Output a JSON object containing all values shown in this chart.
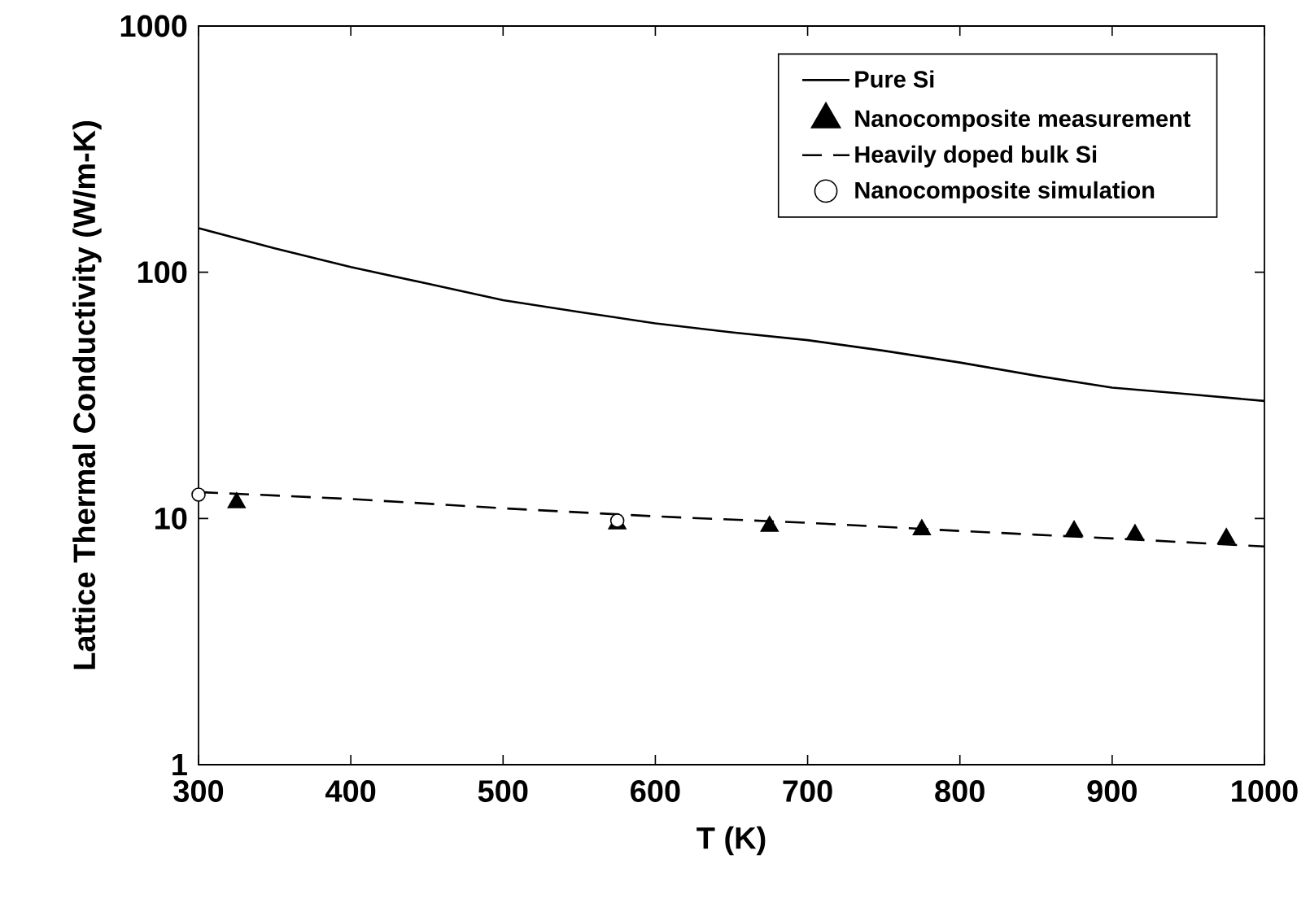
{
  "chart_data": {
    "type": "line",
    "xlabel": "T (K)",
    "ylabel": "Lattice Thermal Conductivity (W/m-K)",
    "log": "y",
    "xlim": [
      300,
      1000
    ],
    "ylim": [
      1,
      1000
    ],
    "xticks": [
      300,
      400,
      500,
      600,
      700,
      800,
      900,
      1000
    ],
    "yticks": [
      1,
      10,
      100,
      1000
    ],
    "grid": false,
    "legend": "top right",
    "series": [
      {
        "name": "Pure Si",
        "color": "#000000",
        "line_style": "solid",
        "marker": "none",
        "x": [
          300,
          350,
          400,
          450,
          500,
          550,
          600,
          650,
          700,
          750,
          800,
          850,
          900,
          950,
          1000
        ],
        "values": [
          151,
          125,
          105,
          90,
          77,
          69,
          62,
          57,
          53,
          48,
          43,
          38,
          34,
          32,
          30
        ]
      },
      {
        "name": "Nanocomposite measurement",
        "type": "scatter",
        "color": "#000000",
        "marker": "triangle",
        "x": [
          325,
          575,
          675,
          775,
          875,
          915,
          975
        ],
        "values": [
          11.6,
          9.5,
          9.3,
          9.0,
          8.9,
          8.6,
          8.3
        ]
      },
      {
        "name": "Heavily doped bulk Si",
        "color": "#000000",
        "line_style": "dashed",
        "marker": "none",
        "x": [
          300,
          400,
          500,
          600,
          700,
          800,
          900,
          1000
        ],
        "values": [
          12.8,
          12.0,
          11.0,
          10.2,
          9.6,
          8.9,
          8.3,
          7.7
        ]
      },
      {
        "name": "Nanocomposite simulation",
        "type": "scatter",
        "color": "#ffffff",
        "marker": "circle",
        "x": [
          300,
          575
        ],
        "values": [
          12.5,
          9.8
        ]
      }
    ]
  }
}
